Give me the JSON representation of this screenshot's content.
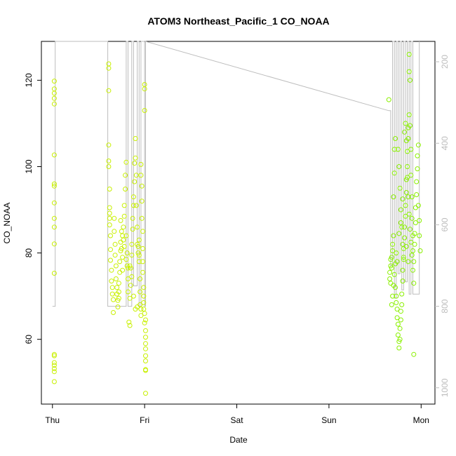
{
  "chart_data": {
    "type": "scatter",
    "title": "ATOM3 Northeast_Pacific_1 CO_NOAA",
    "xlabel": "Date",
    "ylabel": "CO_NOAA",
    "x_tick_labels": [
      "Thu",
      "Fri",
      "Sat",
      "Sun",
      "Mon"
    ],
    "x_ticks_days": [
      0,
      1,
      2,
      3,
      4
    ],
    "xlim_days": [
      -0.12,
      4.15
    ],
    "ylim": [
      45,
      129
    ],
    "y_ticks": [
      60,
      80,
      100,
      120
    ],
    "y2_ticks": [
      200,
      400,
      600,
      800,
      1000
    ],
    "y2lim": [
      1040,
      150
    ],
    "grid": false,
    "legend": "none",
    "colors": {
      "points_yellow": "#c8f000",
      "points_green": "#8af000",
      "altitude_line": "#bdbdbd",
      "axis": "#000000"
    },
    "series": [
      {
        "values": [
          [
            0.02,
            50.2
          ],
          [
            0.02,
            52.5
          ],
          [
            0.02,
            53.2
          ],
          [
            0.02,
            54.0
          ],
          [
            0.02,
            54.6
          ],
          [
            0.02,
            56.2
          ],
          [
            0.02,
            56.5
          ],
          [
            0.02,
            75.3
          ],
          [
            0.02,
            82.1
          ],
          [
            0.02,
            86.0
          ],
          [
            0.02,
            88.0
          ],
          [
            0.02,
            91.6
          ],
          [
            0.02,
            95.5
          ],
          [
            0.02,
            96.0
          ],
          [
            0.02,
            102.7
          ],
          [
            0.02,
            114.5
          ],
          [
            0.02,
            115.8
          ],
          [
            0.02,
            117.0
          ],
          [
            0.02,
            118.0
          ],
          [
            0.02,
            119.8
          ],
          [
            0.61,
            123.8
          ],
          [
            0.61,
            122.8
          ],
          [
            0.61,
            117.6
          ],
          [
            0.61,
            105.0
          ],
          [
            0.61,
            101.3
          ],
          [
            0.61,
            100.0
          ],
          [
            0.62,
            94.8
          ],
          [
            0.62,
            90.5
          ],
          [
            0.62,
            89.2
          ],
          [
            0.62,
            88.0
          ],
          [
            0.62,
            86.5
          ],
          [
            0.63,
            84.0
          ],
          [
            0.63,
            80.8
          ],
          [
            0.63,
            78.3
          ],
          [
            0.64,
            76.0
          ],
          [
            0.64,
            73.5
          ],
          [
            0.65,
            72.0
          ],
          [
            0.65,
            70.5
          ],
          [
            0.66,
            69.2
          ],
          [
            0.66,
            66.2
          ],
          [
            0.67,
            88.0
          ],
          [
            0.67,
            85.0
          ],
          [
            0.68,
            82.0
          ],
          [
            0.68,
            79.5
          ],
          [
            0.69,
            77.0
          ],
          [
            0.69,
            74.0
          ],
          [
            0.7,
            72.0
          ],
          [
            0.7,
            70.5
          ],
          [
            0.71,
            69.0
          ],
          [
            0.71,
            67.5
          ],
          [
            0.72,
            71.0
          ],
          [
            0.72,
            73.0
          ],
          [
            0.73,
            75.5
          ],
          [
            0.73,
            78.0
          ],
          [
            0.74,
            80.5
          ],
          [
            0.74,
            82.5
          ],
          [
            0.75,
            85.0
          ],
          [
            0.75,
            81.0
          ],
          [
            0.76,
            79.0
          ],
          [
            0.76,
            76.0
          ],
          [
            0.77,
            83.0
          ],
          [
            0.77,
            86.0
          ],
          [
            0.78,
            88.5
          ],
          [
            0.78,
            91.0
          ],
          [
            0.79,
            94.8
          ],
          [
            0.79,
            98.0
          ],
          [
            0.8,
            101.0
          ],
          [
            0.8,
            84.0
          ],
          [
            0.81,
            80.0
          ],
          [
            0.81,
            77.0
          ],
          [
            0.82,
            74.0
          ],
          [
            0.82,
            71.0
          ],
          [
            0.83,
            64.0
          ],
          [
            0.84,
            63.2
          ],
          [
            0.84,
            69.5
          ],
          [
            0.85,
            72.5
          ],
          [
            0.85,
            76.5
          ],
          [
            0.86,
            79.5
          ],
          [
            0.86,
            82.0
          ],
          [
            0.87,
            85.5
          ],
          [
            0.87,
            88.0
          ],
          [
            0.88,
            91.0
          ],
          [
            0.88,
            93.0
          ],
          [
            0.89,
            96.5
          ],
          [
            0.89,
            100.8
          ],
          [
            0.9,
            102.0
          ],
          [
            0.9,
            106.5
          ],
          [
            0.91,
            98.0
          ],
          [
            0.91,
            91.0
          ],
          [
            0.92,
            86.0
          ],
          [
            0.92,
            82.0
          ],
          [
            0.93,
            80.0
          ],
          [
            0.93,
            81.5
          ],
          [
            0.94,
            83.0
          ],
          [
            0.94,
            78.0
          ],
          [
            0.95,
            74.0
          ],
          [
            0.95,
            71.0
          ],
          [
            0.95,
            68.0
          ],
          [
            0.96,
            67.0
          ],
          [
            0.96,
            65.5
          ],
          [
            0.96,
            100.5
          ],
          [
            0.96,
            98.0
          ],
          [
            0.97,
            95.5
          ],
          [
            0.97,
            92.0
          ],
          [
            0.97,
            88.0
          ],
          [
            0.98,
            85.0
          ],
          [
            0.98,
            81.0
          ],
          [
            0.98,
            78.0
          ],
          [
            0.98,
            75.5
          ],
          [
            0.99,
            72.0
          ],
          [
            0.99,
            70.0
          ],
          [
            0.99,
            68.5
          ],
          [
            0.99,
            67.0
          ],
          [
            1.0,
            113.0
          ],
          [
            1.0,
            118.0
          ],
          [
            1.0,
            119.0
          ],
          [
            1.0,
            66.0
          ],
          [
            1.0,
            63.8
          ],
          [
            1.01,
            64.5
          ],
          [
            1.01,
            62.0
          ],
          [
            1.01,
            60.5
          ],
          [
            1.01,
            59.0
          ],
          [
            1.01,
            57.8
          ],
          [
            1.01,
            56.2
          ],
          [
            1.01,
            55.0
          ],
          [
            1.01,
            53.0
          ],
          [
            1.01,
            52.8
          ],
          [
            1.01,
            47.5
          ],
          [
            0.94,
            79.5
          ],
          [
            0.92,
            67.5
          ],
          [
            0.9,
            67.0
          ],
          [
            0.88,
            70.0
          ],
          [
            0.86,
            74.5
          ],
          [
            0.84,
            77.0
          ],
          [
            0.82,
            76.5
          ],
          [
            0.8,
            78.5
          ],
          [
            0.78,
            81.5
          ],
          [
            0.76,
            84.0
          ],
          [
            0.74,
            87.5
          ],
          [
            0.72,
            69.5
          ]
        ]
      },
      {
        "values": [
          [
            3.65,
            115.5
          ],
          [
            3.66,
            74.0
          ],
          [
            3.66,
            75.5
          ],
          [
            3.67,
            77.0
          ],
          [
            3.67,
            78.5
          ],
          [
            3.68,
            76.5
          ],
          [
            3.68,
            79.0
          ],
          [
            3.69,
            80.5
          ],
          [
            3.69,
            82.0
          ],
          [
            3.7,
            84.0
          ],
          [
            3.7,
            93.0
          ],
          [
            3.71,
            98.5
          ],
          [
            3.71,
            104.0
          ],
          [
            3.72,
            106.5
          ],
          [
            3.72,
            72.0
          ],
          [
            3.73,
            70.0
          ],
          [
            3.73,
            68.5
          ],
          [
            3.74,
            67.0
          ],
          [
            3.74,
            65.0
          ],
          [
            3.75,
            63.5
          ],
          [
            3.75,
            61.0
          ],
          [
            3.76,
            59.5
          ],
          [
            3.76,
            58.0
          ],
          [
            3.77,
            60.0
          ],
          [
            3.77,
            62.5
          ],
          [
            3.78,
            64.5
          ],
          [
            3.78,
            66.5
          ],
          [
            3.79,
            68.0
          ],
          [
            3.79,
            70.5
          ],
          [
            3.8,
            73.5
          ],
          [
            3.8,
            76.0
          ],
          [
            3.81,
            78.5
          ],
          [
            3.81,
            81.0
          ],
          [
            3.82,
            83.5
          ],
          [
            3.82,
            86.0
          ],
          [
            3.83,
            88.5
          ],
          [
            3.83,
            91.0
          ],
          [
            3.84,
            94.0
          ],
          [
            3.84,
            97.0
          ],
          [
            3.85,
            100.0
          ],
          [
            3.85,
            103.5
          ],
          [
            3.86,
            106.5
          ],
          [
            3.86,
            109.0
          ],
          [
            3.87,
            112.0
          ],
          [
            3.87,
            126.0
          ],
          [
            3.87,
            122.0
          ],
          [
            3.88,
            120.0
          ],
          [
            3.88,
            109.5
          ],
          [
            3.89,
            104.0
          ],
          [
            3.89,
            98.0
          ],
          [
            3.9,
            93.0
          ],
          [
            3.9,
            88.0
          ],
          [
            3.91,
            84.0
          ],
          [
            3.91,
            80.5
          ],
          [
            3.92,
            78.0
          ],
          [
            3.92,
            56.5
          ],
          [
            3.93,
            82.0
          ],
          [
            3.93,
            84.5
          ],
          [
            3.94,
            87.0
          ],
          [
            3.94,
            90.5
          ],
          [
            3.95,
            93.5
          ],
          [
            3.95,
            96.5
          ],
          [
            3.96,
            99.5
          ],
          [
            3.96,
            102.5
          ],
          [
            3.97,
            105.0
          ],
          [
            3.97,
            91.0
          ],
          [
            3.98,
            87.5
          ],
          [
            3.98,
            84.0
          ],
          [
            3.99,
            80.5
          ],
          [
            3.75,
            104.0
          ],
          [
            3.76,
            100.0
          ],
          [
            3.77,
            95.0
          ],
          [
            3.78,
            90.0
          ],
          [
            3.79,
            86.0
          ],
          [
            3.8,
            82.0
          ],
          [
            3.81,
            79.0
          ],
          [
            3.82,
            108.0
          ],
          [
            3.83,
            110.0
          ],
          [
            3.84,
            106.0
          ],
          [
            3.85,
            97.5
          ],
          [
            3.86,
            93.0
          ],
          [
            3.87,
            89.0
          ],
          [
            3.88,
            85.5
          ],
          [
            3.89,
            82.5
          ],
          [
            3.9,
            79.5
          ],
          [
            3.91,
            76.0
          ],
          [
            3.92,
            73.0
          ],
          [
            3.74,
            78.0
          ],
          [
            3.73,
            80.0
          ],
          [
            3.72,
            77.5
          ],
          [
            3.71,
            75.0
          ],
          [
            3.7,
            72.5
          ],
          [
            3.69,
            70.0
          ],
          [
            3.68,
            68.0
          ],
          [
            3.67,
            73.0
          ],
          [
            3.76,
            84.5
          ],
          [
            3.78,
            87.0
          ],
          [
            3.8,
            92.5
          ],
          [
            3.84,
            81.5
          ],
          [
            3.86,
            78.0
          ]
        ]
      }
    ],
    "altitude_line": [
      [
        0.0,
        800
      ],
      [
        0.03,
        800
      ],
      [
        0.03,
        100
      ],
      [
        0.6,
        100
      ],
      [
        0.6,
        800
      ],
      [
        0.8,
        800
      ],
      [
        0.8,
        100
      ],
      [
        0.82,
        100
      ],
      [
        0.82,
        800
      ],
      [
        0.86,
        800
      ],
      [
        0.86,
        100
      ],
      [
        0.88,
        100
      ],
      [
        0.88,
        750
      ],
      [
        0.92,
        750
      ],
      [
        0.92,
        100
      ],
      [
        0.94,
        100
      ],
      [
        0.94,
        800
      ],
      [
        0.96,
        800
      ],
      [
        0.96,
        100
      ],
      [
        1.0,
        100
      ],
      [
        1.0,
        800
      ],
      [
        1.01,
        800
      ],
      [
        1.01,
        150
      ],
      [
        3.65,
        320
      ],
      [
        3.67,
        320
      ],
      [
        3.67,
        700
      ],
      [
        3.69,
        700
      ],
      [
        3.69,
        100
      ],
      [
        3.71,
        100
      ],
      [
        3.71,
        780
      ],
      [
        3.73,
        780
      ],
      [
        3.73,
        100
      ],
      [
        3.75,
        100
      ],
      [
        3.75,
        720
      ],
      [
        3.77,
        720
      ],
      [
        3.77,
        100
      ],
      [
        3.79,
        100
      ],
      [
        3.79,
        760
      ],
      [
        3.81,
        760
      ],
      [
        3.81,
        100
      ],
      [
        3.83,
        100
      ],
      [
        3.83,
        740
      ],
      [
        3.85,
        740
      ],
      [
        3.85,
        100
      ],
      [
        3.87,
        100
      ],
      [
        3.87,
        770
      ],
      [
        3.89,
        770
      ],
      [
        3.89,
        100
      ],
      [
        3.91,
        100
      ],
      [
        3.91,
        770
      ],
      [
        3.93,
        770
      ],
      [
        3.93,
        770
      ],
      [
        3.98,
        770
      ],
      [
        3.98,
        140
      ]
    ]
  }
}
